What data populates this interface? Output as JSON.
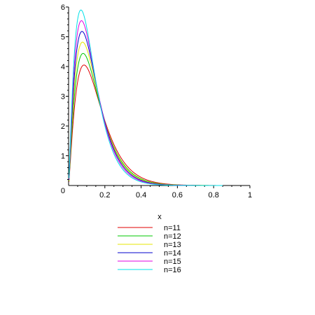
{
  "chart_data": {
    "type": "line",
    "xlabel": "x",
    "ylabel": "",
    "xlim": [
      0,
      1
    ],
    "ylim": [
      0,
      6
    ],
    "x_ticks": [
      "0.2",
      "0.4",
      "0.6",
      "0.8",
      "1"
    ],
    "y_ticks": [
      "1",
      "2",
      "3",
      "4",
      "5",
      "6"
    ],
    "origin_label": "0",
    "grid": false,
    "legend_placement": "bottom-center",
    "series": [
      {
        "name": "n=11",
        "color": "#e00000",
        "peak_x": 0.085,
        "peak_y": 4.05
      },
      {
        "name": "n=12",
        "color": "#00c800",
        "peak_x": 0.08,
        "peak_y": 4.44
      },
      {
        "name": "n=13",
        "color": "#e6e600",
        "peak_x": 0.077,
        "peak_y": 4.82
      },
      {
        "name": "n=14",
        "color": "#0000cc",
        "peak_x": 0.074,
        "peak_y": 5.18
      },
      {
        "name": "n=15",
        "color": "#e000e0",
        "peak_x": 0.071,
        "peak_y": 5.54
      },
      {
        "name": "n=16",
        "color": "#00e0e8",
        "peak_x": 0.068,
        "peak_y": 5.9
      }
    ]
  }
}
